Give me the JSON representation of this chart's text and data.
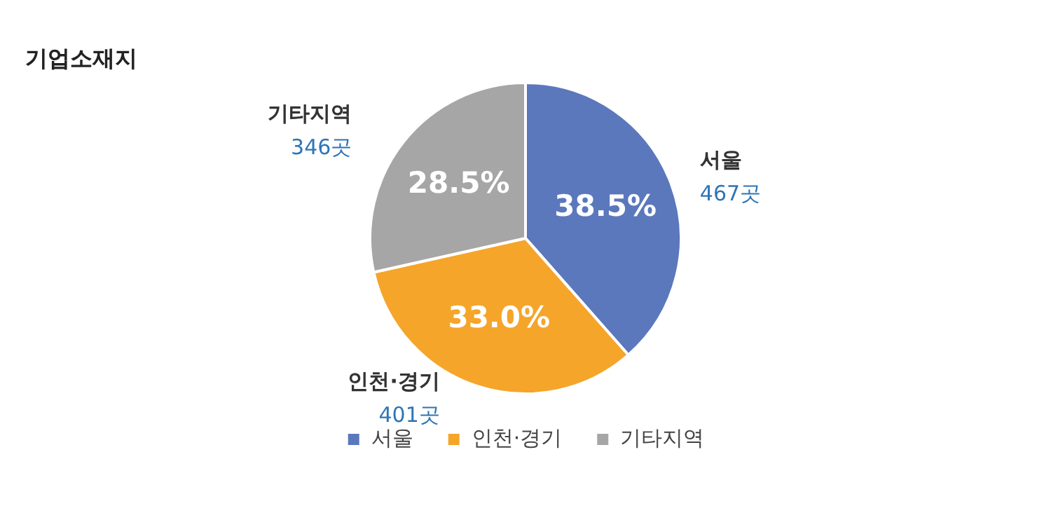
{
  "chart_data": {
    "type": "pie",
    "title": "기업소재지",
    "categories": [
      "서울",
      "인천·경기",
      "기타지역"
    ],
    "values": [
      38.5,
      33.0,
      28.5
    ],
    "colors": [
      "#5b78bd",
      "#f5a52a",
      "#a6a6a6"
    ],
    "value_labels": [
      "38.5%",
      "33.0%",
      "28.5%"
    ],
    "annotations": [
      "467곳",
      "401곳",
      "346곳"
    ],
    "legend": "bottom"
  }
}
